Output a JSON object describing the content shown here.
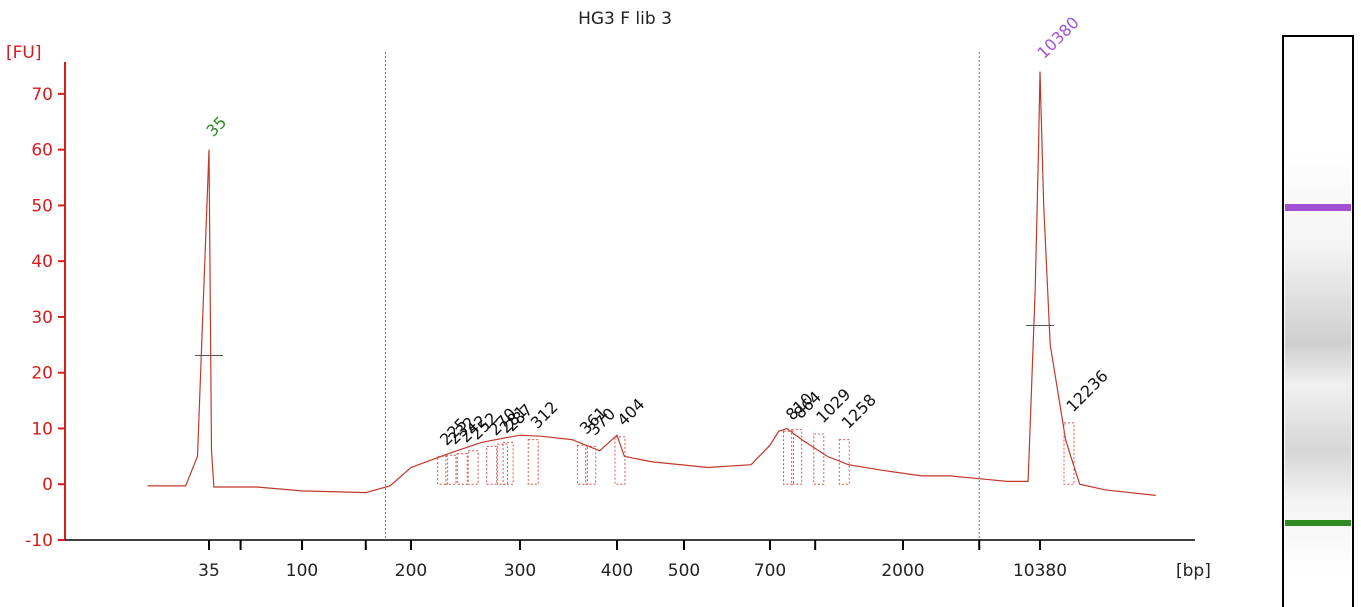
{
  "chart_data": {
    "type": "line",
    "title": "HG3 F lib 3",
    "ylabel": "[FU]",
    "xlabel": "[bp]",
    "ylim": [
      -10,
      75
    ],
    "yticks": [
      -10,
      0,
      10,
      20,
      30,
      40,
      50,
      60,
      70
    ],
    "xticks": [
      "35",
      "100",
      "200",
      "300",
      "400",
      "500",
      "700",
      "2000",
      "10380"
    ],
    "grid": false,
    "series": [
      {
        "x": [
          30,
          33,
          34,
          35,
          36,
          37,
          40,
          60,
          100,
          150,
          175,
          200,
          230,
          260,
          290,
          300,
          320,
          350,
          380,
          400,
          410,
          450,
          550,
          650,
          700,
          750,
          800,
          900,
          1100,
          1300,
          1700,
          2500,
          3500,
          5000,
          7000,
          9000,
          9800,
          10200,
          10380,
          10600,
          11000,
          12000,
          12236,
          13000,
          15000,
          20000
        ],
        "values": [
          -0.3,
          -0.3,
          5,
          60,
          6,
          -0.5,
          -0.5,
          -0.5,
          -1.2,
          -1.5,
          -0.3,
          3,
          5.5,
          7.5,
          8.5,
          8.8,
          8.6,
          8,
          6,
          8.8,
          5,
          4,
          3,
          3.5,
          7,
          9.5,
          10,
          8,
          5,
          3.5,
          2.5,
          1.5,
          1.5,
          1,
          0.5,
          0.5,
          35,
          60,
          74,
          50,
          25,
          8,
          6,
          0,
          -1,
          -2
        ]
      }
    ],
    "peaks": [
      {
        "label": "35",
        "x": 35,
        "y": 60,
        "color": "#2e8b22"
      },
      {
        "label": "10380",
        "x": 10380,
        "y": 74,
        "color": "#a24fd6"
      },
      {
        "label": "225",
        "x": 225,
        "y": 5,
        "color": "#111111"
      },
      {
        "label": "232",
        "x": 232,
        "y": 5.2,
        "color": "#111111"
      },
      {
        "label": "242",
        "x": 242,
        "y": 5.5,
        "color": "#111111"
      },
      {
        "label": "252",
        "x": 252,
        "y": 6,
        "color": "#111111"
      },
      {
        "label": "270",
        "x": 270,
        "y": 6.8,
        "color": "#111111"
      },
      {
        "label": "281",
        "x": 281,
        "y": 7.2,
        "color": "#111111"
      },
      {
        "label": "287",
        "x": 287,
        "y": 7.5,
        "color": "#111111"
      },
      {
        "label": "312",
        "x": 312,
        "y": 8,
        "color": "#111111"
      },
      {
        "label": "361",
        "x": 361,
        "y": 7,
        "color": "#111111"
      },
      {
        "label": "370",
        "x": 370,
        "y": 6.8,
        "color": "#111111"
      },
      {
        "label": "404",
        "x": 404,
        "y": 8.5,
        "color": "#111111"
      },
      {
        "label": "810",
        "x": 810,
        "y": 9.5,
        "color": "#111111"
      },
      {
        "label": "864",
        "x": 864,
        "y": 9.8,
        "color": "#111111"
      },
      {
        "label": "1029",
        "x": 1029,
        "y": 9,
        "color": "#111111"
      },
      {
        "label": "1258",
        "x": 1258,
        "y": 8,
        "color": "#111111"
      },
      {
        "label": "12236",
        "x": 12236,
        "y": 11,
        "color": "#111111"
      }
    ]
  }
}
